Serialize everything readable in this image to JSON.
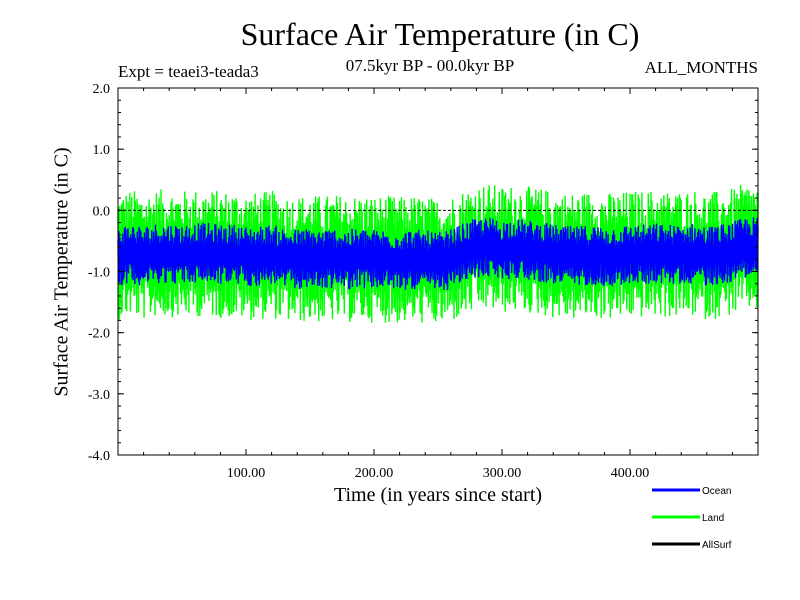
{
  "chart_data": {
    "type": "line",
    "title": "Surface Air Temperature (in C)",
    "subtitle": "07.5kyr BP - 00.0kyr BP",
    "experiment": "Expt = teaei3-teada3",
    "months": "ALL_MONTHS",
    "xlabel": "Time (in years since start)",
    "ylabel": "Surface Air Temperature (in C)",
    "xlim": [
      0,
      500
    ],
    "ylim": [
      -4.0,
      2.0
    ],
    "xticks": [
      100,
      200,
      300,
      400
    ],
    "xtick_labels": [
      "100.00",
      "200.00",
      "300.00",
      "400.00"
    ],
    "yticks": [
      -4.0,
      -3.0,
      -2.0,
      -1.0,
      0.0,
      1.0,
      2.0
    ],
    "ytick_labels": [
      "-4.0",
      "-3.0",
      "-2.0",
      "-1.0",
      "0.0",
      "1.0",
      "2.0"
    ],
    "reference_line_y": 0.0,
    "series": [
      {
        "name": "Land",
        "color": "#00ff00",
        "x": [
          0,
          10,
          20,
          30,
          40,
          50,
          60,
          70,
          80,
          90,
          100,
          110,
          120,
          130,
          140,
          150,
          160,
          170,
          180,
          190,
          200,
          210,
          220,
          230,
          240,
          250,
          260,
          270,
          280,
          290,
          300,
          310,
          320,
          330,
          340,
          350,
          360,
          370,
          380,
          390,
          400,
          410,
          420,
          430,
          440,
          450,
          460,
          470,
          480,
          490,
          500
        ],
        "center": [
          -0.75,
          -0.7,
          -0.75,
          -0.7,
          -0.7,
          -0.72,
          -0.7,
          -0.7,
          -0.72,
          -0.72,
          -0.75,
          -0.75,
          -0.72,
          -0.78,
          -0.8,
          -0.78,
          -0.8,
          -0.78,
          -0.8,
          -0.78,
          -0.8,
          -0.8,
          -0.82,
          -0.8,
          -0.82,
          -0.85,
          -0.8,
          -0.7,
          -0.62,
          -0.6,
          -0.65,
          -0.62,
          -0.65,
          -0.68,
          -0.72,
          -0.75,
          -0.75,
          -0.72,
          -0.75,
          -0.75,
          -0.72,
          -0.72,
          -0.7,
          -0.72,
          -0.72,
          -0.7,
          -0.75,
          -0.72,
          -0.68,
          -0.6,
          -0.6
        ],
        "amplitude": 0.95
      },
      {
        "name": "Ocean",
        "color": "#0000ff",
        "x": [
          0,
          10,
          20,
          30,
          40,
          50,
          60,
          70,
          80,
          90,
          100,
          110,
          120,
          130,
          140,
          150,
          160,
          170,
          180,
          190,
          200,
          210,
          220,
          230,
          240,
          250,
          260,
          270,
          280,
          290,
          300,
          310,
          320,
          330,
          340,
          350,
          360,
          370,
          380,
          390,
          400,
          410,
          420,
          430,
          440,
          450,
          460,
          470,
          480,
          490,
          500
        ],
        "center": [
          -0.75,
          -0.7,
          -0.75,
          -0.7,
          -0.7,
          -0.72,
          -0.7,
          -0.7,
          -0.72,
          -0.72,
          -0.75,
          -0.75,
          -0.72,
          -0.78,
          -0.8,
          -0.78,
          -0.8,
          -0.78,
          -0.8,
          -0.78,
          -0.8,
          -0.8,
          -0.82,
          -0.8,
          -0.82,
          -0.85,
          -0.8,
          -0.7,
          -0.62,
          -0.6,
          -0.65,
          -0.62,
          -0.65,
          -0.68,
          -0.72,
          -0.75,
          -0.75,
          -0.72,
          -0.75,
          -0.75,
          -0.72,
          -0.72,
          -0.7,
          -0.72,
          -0.72,
          -0.7,
          -0.75,
          -0.72,
          -0.68,
          -0.6,
          -0.6
        ],
        "amplitude": 0.45
      },
      {
        "name": "AllSurf",
        "color": "#000000",
        "x": [],
        "center": [],
        "amplitude": 0
      }
    ],
    "legend_order": [
      "Ocean",
      "Land",
      "AllSurf"
    ],
    "legend_position": "bottom-right"
  }
}
